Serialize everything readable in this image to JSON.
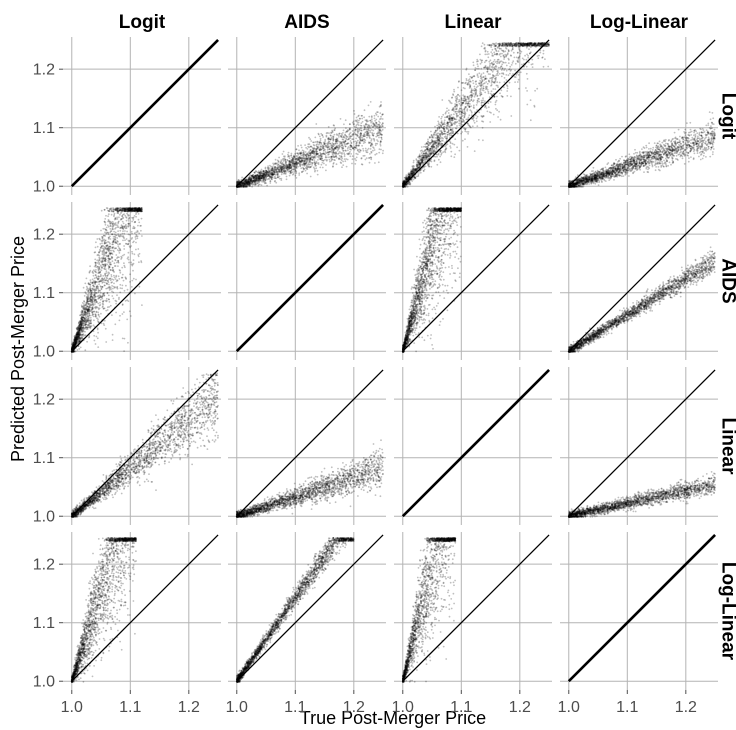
{
  "chart_data": {
    "type": "scatter",
    "facet_grid": {
      "rows": 4,
      "cols": 4
    },
    "col_labels": [
      "Logit",
      "AIDS",
      "Linear",
      "Log-Linear"
    ],
    "row_labels": [
      "Logit",
      "AIDS",
      "Linear",
      "Log-Linear"
    ],
    "xlabel": "True Post-Merger Price",
    "ylabel": "Predicted Post-Merger Price",
    "xlim": [
      1.0,
      1.25
    ],
    "ylim": [
      1.0,
      1.25
    ],
    "x_ticks": [
      "1.0",
      "1.1",
      "1.2"
    ],
    "y_ticks": [
      "1.0",
      "1.1",
      "1.2"
    ],
    "grid": true,
    "reference_line": "y = x",
    "point_color": "#000000",
    "point_alpha": 0.25,
    "panels": [
      {
        "row": "Logit",
        "col": "Logit",
        "pattern": "identity",
        "x_max": 1.25,
        "slope_mean": 1.0,
        "spread": 0.0,
        "n": 0
      },
      {
        "row": "Logit",
        "col": "AIDS",
        "pattern": "under",
        "x_max": 1.25,
        "slope_mean": 0.4,
        "spread": 0.22,
        "n": 2200
      },
      {
        "row": "Logit",
        "col": "Linear",
        "pattern": "over",
        "x_max": 1.25,
        "slope_mean": 1.3,
        "spread": 0.18,
        "n": 2200
      },
      {
        "row": "Logit",
        "col": "Log-Linear",
        "pattern": "under",
        "x_max": 1.25,
        "slope_mean": 0.35,
        "spread": 0.17,
        "n": 2200
      },
      {
        "row": "AIDS",
        "col": "Logit",
        "pattern": "over",
        "x_max": 1.12,
        "slope_mean": 2.6,
        "spread": 0.32,
        "n": 2200
      },
      {
        "row": "AIDS",
        "col": "AIDS",
        "pattern": "identity",
        "x_max": 1.25,
        "slope_mean": 1.0,
        "spread": 0.0,
        "n": 0
      },
      {
        "row": "AIDS",
        "col": "Linear",
        "pattern": "over",
        "x_max": 1.1,
        "slope_mean": 3.6,
        "spread": 0.3,
        "n": 2200
      },
      {
        "row": "AIDS",
        "col": "Log-Linear",
        "pattern": "under",
        "x_max": 1.25,
        "slope_mean": 0.62,
        "spread": 0.06,
        "n": 2200
      },
      {
        "row": "Linear",
        "col": "Logit",
        "pattern": "near",
        "x_max": 1.25,
        "slope_mean": 0.82,
        "spread": 0.16,
        "n": 2200
      },
      {
        "row": "Linear",
        "col": "AIDS",
        "pattern": "under",
        "x_max": 1.25,
        "slope_mean": 0.33,
        "spread": 0.2,
        "n": 2200
      },
      {
        "row": "Linear",
        "col": "Linear",
        "pattern": "identity",
        "x_max": 1.25,
        "slope_mean": 1.0,
        "spread": 0.0,
        "n": 0
      },
      {
        "row": "Linear",
        "col": "Log-Linear",
        "pattern": "under",
        "x_max": 1.25,
        "slope_mean": 0.22,
        "spread": 0.13,
        "n": 2200
      },
      {
        "row": "Log-Linear",
        "col": "Logit",
        "pattern": "over",
        "x_max": 1.11,
        "slope_mean": 3.1,
        "spread": 0.3,
        "n": 2000
      },
      {
        "row": "Log-Linear",
        "col": "AIDS",
        "pattern": "over",
        "x_max": 1.2,
        "slope_mean": 1.42,
        "spread": 0.05,
        "n": 2200
      },
      {
        "row": "Log-Linear",
        "col": "Linear",
        "pattern": "over",
        "x_max": 1.09,
        "slope_mean": 4.0,
        "spread": 0.3,
        "n": 1800
      },
      {
        "row": "Log-Linear",
        "col": "Log-Linear",
        "pattern": "identity",
        "x_max": 1.25,
        "slope_mean": 1.0,
        "spread": 0.0,
        "n": 0
      }
    ]
  }
}
